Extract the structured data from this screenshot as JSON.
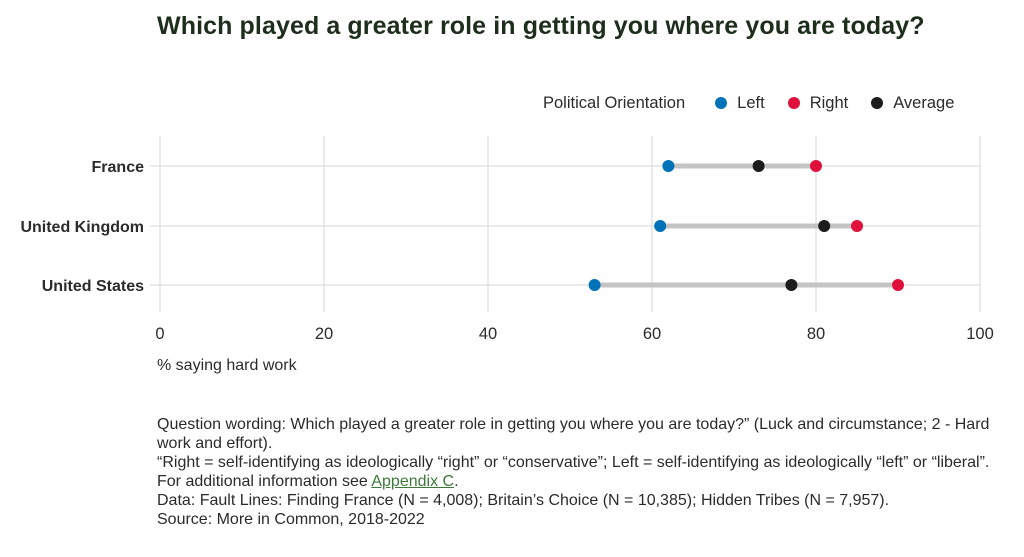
{
  "chart_data": {
    "type": "dumbbell",
    "title": "Which played a greater role in getting you where you are today?",
    "xlabel": "% saying hard work",
    "xlim": [
      0,
      100
    ],
    "xticks": [
      0,
      20,
      40,
      60,
      80,
      100
    ],
    "grid": true,
    "legend": {
      "title": "Political Orientation",
      "placement": "top-right",
      "items": [
        {
          "key": "left",
          "label": "Left",
          "color": "#0072b8"
        },
        {
          "key": "right",
          "label": "Right",
          "color": "#e0103c"
        },
        {
          "key": "avg",
          "label": "Average",
          "color": "#1c1c1c"
        }
      ]
    },
    "categories": [
      "France",
      "United Kingdom",
      "United States"
    ],
    "series": [
      {
        "name": "Left",
        "color": "#0072b8",
        "values": [
          62,
          61,
          53
        ]
      },
      {
        "name": "Right",
        "color": "#e0103c",
        "values": [
          80,
          85,
          90
        ]
      },
      {
        "name": "Average",
        "color": "#1c1c1c",
        "values": [
          73,
          81,
          77
        ]
      }
    ]
  },
  "notes": {
    "line1": "Question wording: Which played a greater role in getting you where you are today?” (Luck and circumstance; 2 - Hard work and effort).",
    "line2": "“Right = self-identifying as ideologically “right” or “conservative”; Left = self-identifying as ideologically “left” or “liberal”.",
    "line3_prefix": "For additional information see ",
    "line3_link": "Appendix C",
    "line3_suffix": ".",
    "line4": "Data: Fault Lines: Finding France (N = 4,008); Britain’s Choice (N = 10,385); Hidden Tribes (N = 7,957).",
    "line5": "Source: More in Common, 2018-2022"
  }
}
